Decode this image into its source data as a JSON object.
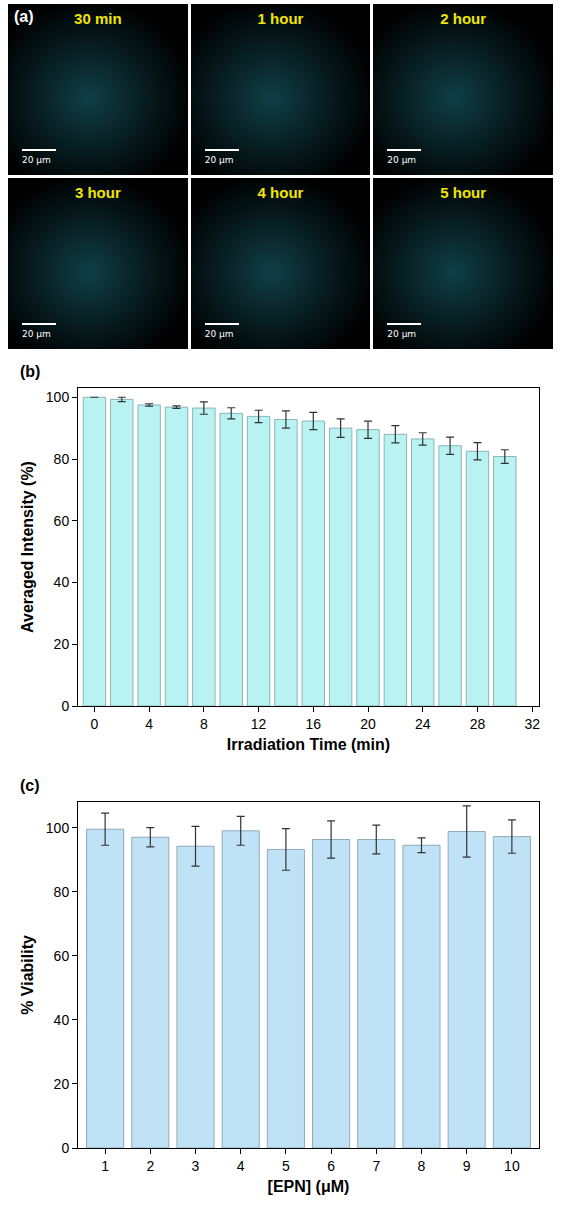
{
  "panel_a": {
    "panel_label": "(a)",
    "frames": [
      "30 min",
      "1 hour",
      "2 hour",
      "3 hour",
      "4 hour",
      "5 hour"
    ],
    "scale_bar": "20 μm"
  },
  "chart_data": [
    {
      "type": "bar",
      "panel_label": "(b)",
      "x_label": "Irradiation Time (min)",
      "y_label": "Averaged Intensity (%)",
      "x": [
        0,
        2,
        4,
        6,
        8,
        10,
        12,
        14,
        16,
        18,
        20,
        22,
        24,
        26,
        28,
        30
      ],
      "values": [
        100,
        99.3,
        97.5,
        96.8,
        96.5,
        94.8,
        93.8,
        92.8,
        92.3,
        90,
        89.5,
        88,
        86.5,
        84.3,
        82.5,
        80.8
      ],
      "errors": [
        0,
        0.7,
        0.4,
        0.4,
        2,
        1.8,
        2,
        2.8,
        2.8,
        3,
        2.8,
        2.8,
        2,
        2.8,
        2.8,
        2.2
      ],
      "color": "#b8f2f2",
      "xlim": [
        -1.2,
        32.5
      ],
      "xticks": [
        0,
        4,
        8,
        12,
        16,
        20,
        24,
        28,
        32
      ],
      "ylim": [
        0,
        103
      ],
      "yticks": [
        0,
        20,
        40,
        60,
        80,
        100
      ],
      "grid": false
    },
    {
      "type": "bar",
      "panel_label": "(c)",
      "x_label": "[EPN] (μM)",
      "y_label": "% Viability",
      "x": [
        1,
        2,
        3,
        4,
        5,
        6,
        7,
        8,
        9,
        10
      ],
      "values": [
        99.5,
        97,
        94.2,
        99,
        93.2,
        96.3,
        96.3,
        94.5,
        98.8,
        97.2
      ],
      "errors": [
        5,
        3,
        6.2,
        4.5,
        6.5,
        5.8,
        4.5,
        2.3,
        8,
        5.2
      ],
      "color": "#bfe2f7",
      "xlim": [
        0.4,
        10.6
      ],
      "xticks": [
        1,
        2,
        3,
        4,
        5,
        6,
        7,
        8,
        9,
        10
      ],
      "ylim": [
        0,
        108
      ],
      "yticks": [
        0,
        20,
        40,
        60,
        80,
        100
      ],
      "grid": false
    }
  ]
}
